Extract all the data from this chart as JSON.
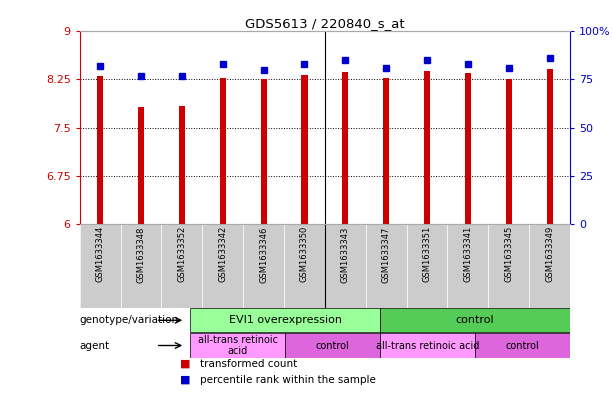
{
  "title": "GDS5613 / 220840_s_at",
  "samples": [
    "GSM1633344",
    "GSM1633348",
    "GSM1633352",
    "GSM1633342",
    "GSM1633346",
    "GSM1633350",
    "GSM1633343",
    "GSM1633347",
    "GSM1633351",
    "GSM1633341",
    "GSM1633345",
    "GSM1633349"
  ],
  "bar_values": [
    8.3,
    7.82,
    7.84,
    8.27,
    8.25,
    8.32,
    8.37,
    8.28,
    8.38,
    8.35,
    8.25,
    8.42
  ],
  "percentile_values": [
    82,
    77,
    77,
    83,
    80,
    83,
    85,
    81,
    85,
    83,
    81,
    86
  ],
  "bar_base": 6.0,
  "ylim_left": [
    6,
    9
  ],
  "ylim_right": [
    0,
    100
  ],
  "yticks_left": [
    6,
    6.75,
    7.5,
    8.25,
    9
  ],
  "yticks_left_labels": [
    "6",
    "6.75",
    "7.5",
    "8.25",
    "9"
  ],
  "yticks_right": [
    0,
    25,
    50,
    75,
    100
  ],
  "yticks_right_labels": [
    "0",
    "25",
    "50",
    "75",
    "100%"
  ],
  "bar_color": "#cc0000",
  "percentile_color": "#0000cc",
  "background_color": "#ffffff",
  "genotype_groups": [
    {
      "label": "EVI1 overexpression",
      "start": 0,
      "end": 6,
      "color": "#99ff99"
    },
    {
      "label": "control",
      "start": 6,
      "end": 12,
      "color": "#55cc55"
    }
  ],
  "agent_groups": [
    {
      "label": "all-trans retinoic\nacid",
      "start": 0,
      "end": 3,
      "color": "#ff99ff"
    },
    {
      "label": "control",
      "start": 3,
      "end": 6,
      "color": "#dd66dd"
    },
    {
      "label": "all-trans retinoic acid",
      "start": 6,
      "end": 9,
      "color": "#ff99ff"
    },
    {
      "label": "control",
      "start": 9,
      "end": 12,
      "color": "#dd66dd"
    }
  ],
  "legend_items": [
    {
      "label": "transformed count",
      "color": "#cc0000"
    },
    {
      "label": "percentile rank within the sample",
      "color": "#0000cc"
    }
  ],
  "row_labels": [
    "genotype/variation",
    "agent"
  ],
  "tick_bg_color": "#cccccc",
  "bar_width": 0.15,
  "group_sep": 5.5
}
